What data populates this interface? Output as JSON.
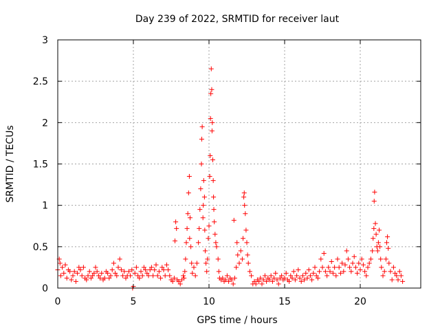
{
  "chart_data": {
    "type": "scatter",
    "title": "Day 239 of 2022, SRMTID for receiver laut",
    "xlabel": "GPS time / hours",
    "ylabel": "SRMTID / TECUs",
    "xlim": [
      0,
      24
    ],
    "ylim": [
      0,
      3
    ],
    "xticks": [
      0,
      5,
      10,
      15,
      20
    ],
    "xtick_labels": [
      "0",
      "5",
      "10",
      "15",
      "20"
    ],
    "yticks": [
      0,
      0.5,
      1,
      1.5,
      2,
      2.5,
      3
    ],
    "ytick_labels": [
      "0",
      "0.5",
      "1",
      "1.5",
      "2",
      "2.5",
      "3"
    ],
    "grid": true,
    "marker": "+",
    "color": "#ff0000",
    "series": [
      {
        "name": "SRMTID",
        "points": [
          [
            0.0,
            0.22
          ],
          [
            0.1,
            0.35
          ],
          [
            0.15,
            0.3
          ],
          [
            0.2,
            0.15
          ],
          [
            0.3,
            0.25
          ],
          [
            0.4,
            0.18
          ],
          [
            0.5,
            0.28
          ],
          [
            0.6,
            0.12
          ],
          [
            0.7,
            0.22
          ],
          [
            0.8,
            0.2
          ],
          [
            0.9,
            0.1
          ],
          [
            1.0,
            0.15
          ],
          [
            1.1,
            0.2
          ],
          [
            1.2,
            0.08
          ],
          [
            1.3,
            0.18
          ],
          [
            1.4,
            0.25
          ],
          [
            1.5,
            0.22
          ],
          [
            1.6,
            0.15
          ],
          [
            1.7,
            0.25
          ],
          [
            1.8,
            0.12
          ],
          [
            1.9,
            0.1
          ],
          [
            2.0,
            0.15
          ],
          [
            2.1,
            0.2
          ],
          [
            2.2,
            0.12
          ],
          [
            2.3,
            0.15
          ],
          [
            2.4,
            0.18
          ],
          [
            2.5,
            0.25
          ],
          [
            2.6,
            0.2
          ],
          [
            2.7,
            0.15
          ],
          [
            2.8,
            0.12
          ],
          [
            2.9,
            0.18
          ],
          [
            3.0,
            0.1
          ],
          [
            3.1,
            0.12
          ],
          [
            3.2,
            0.2
          ],
          [
            3.3,
            0.18
          ],
          [
            3.4,
            0.12
          ],
          [
            3.5,
            0.15
          ],
          [
            3.6,
            0.22
          ],
          [
            3.7,
            0.3
          ],
          [
            3.8,
            0.18
          ],
          [
            3.9,
            0.15
          ],
          [
            4.0,
            0.25
          ],
          [
            4.1,
            0.35
          ],
          [
            4.2,
            0.22
          ],
          [
            4.3,
            0.15
          ],
          [
            4.4,
            0.2
          ],
          [
            4.5,
            0.12
          ],
          [
            4.6,
            0.15
          ],
          [
            4.7,
            0.2
          ],
          [
            4.8,
            0.15
          ],
          [
            4.9,
            0.22
          ],
          [
            4.95,
            0.0
          ],
          [
            5.0,
            0.02
          ],
          [
            5.1,
            0.18
          ],
          [
            5.2,
            0.25
          ],
          [
            5.3,
            0.15
          ],
          [
            5.4,
            0.12
          ],
          [
            5.5,
            0.2
          ],
          [
            5.6,
            0.15
          ],
          [
            5.7,
            0.25
          ],
          [
            5.8,
            0.22
          ],
          [
            5.9,
            0.18
          ],
          [
            6.0,
            0.15
          ],
          [
            6.1,
            0.22
          ],
          [
            6.2,
            0.25
          ],
          [
            6.3,
            0.15
          ],
          [
            6.4,
            0.22
          ],
          [
            6.5,
            0.28
          ],
          [
            6.6,
            0.15
          ],
          [
            6.7,
            0.2
          ],
          [
            6.8,
            0.12
          ],
          [
            6.9,
            0.25
          ],
          [
            7.0,
            0.22
          ],
          [
            7.1,
            0.15
          ],
          [
            7.2,
            0.28
          ],
          [
            7.3,
            0.22
          ],
          [
            7.4,
            0.15
          ],
          [
            7.5,
            0.1
          ],
          [
            7.6,
            0.08
          ],
          [
            7.7,
            0.12
          ],
          [
            7.75,
            0.57
          ],
          [
            7.8,
            0.8
          ],
          [
            7.85,
            0.72
          ],
          [
            7.9,
            0.1
          ],
          [
            8.0,
            0.08
          ],
          [
            8.1,
            0.05
          ],
          [
            8.2,
            0.1
          ],
          [
            8.3,
            0.15
          ],
          [
            8.35,
            0.12
          ],
          [
            8.4,
            0.2
          ],
          [
            8.45,
            0.35
          ],
          [
            8.5,
            0.55
          ],
          [
            8.55,
            0.72
          ],
          [
            8.6,
            0.9
          ],
          [
            8.65,
            1.15
          ],
          [
            8.7,
            1.35
          ],
          [
            8.72,
            0.6
          ],
          [
            8.75,
            0.85
          ],
          [
            8.8,
            0.5
          ],
          [
            8.85,
            0.3
          ],
          [
            8.9,
            0.18
          ],
          [
            9.0,
            0.25
          ],
          [
            9.1,
            0.15
          ],
          [
            9.2,
            0.3
          ],
          [
            9.3,
            0.55
          ],
          [
            9.35,
            0.72
          ],
          [
            9.4,
            0.95
          ],
          [
            9.45,
            1.2
          ],
          [
            9.5,
            1.5
          ],
          [
            9.52,
            1.8
          ],
          [
            9.55,
            1.95
          ],
          [
            9.6,
            0.85
          ],
          [
            9.62,
            1.0
          ],
          [
            9.65,
            1.3
          ],
          [
            9.7,
            1.1
          ],
          [
            9.72,
            0.7
          ],
          [
            9.75,
            0.45
          ],
          [
            9.8,
            0.3
          ],
          [
            9.85,
            0.2
          ],
          [
            9.9,
            0.35
          ],
          [
            9.95,
            0.6
          ],
          [
            10.0,
            0.75
          ],
          [
            10.05,
            1.35
          ],
          [
            10.08,
            1.6
          ],
          [
            10.1,
            2.05
          ],
          [
            10.12,
            2.35
          ],
          [
            10.15,
            2.65
          ],
          [
            10.18,
            2.4
          ],
          [
            10.2,
            1.9
          ],
          [
            10.22,
            2.0
          ],
          [
            10.25,
            1.55
          ],
          [
            10.28,
            1.3
          ],
          [
            10.3,
            1.1
          ],
          [
            10.32,
            0.95
          ],
          [
            10.35,
            0.8
          ],
          [
            10.4,
            0.65
          ],
          [
            10.45,
            0.55
          ],
          [
            10.5,
            0.5
          ],
          [
            10.6,
            0.35
          ],
          [
            10.65,
            0.2
          ],
          [
            10.7,
            0.12
          ],
          [
            10.8,
            0.1
          ],
          [
            10.9,
            0.12
          ],
          [
            11.0,
            0.08
          ],
          [
            11.1,
            0.1
          ],
          [
            11.2,
            0.15
          ],
          [
            11.3,
            0.08
          ],
          [
            11.4,
            0.12
          ],
          [
            11.5,
            0.1
          ],
          [
            11.6,
            0.05
          ],
          [
            11.65,
            0.82
          ],
          [
            11.7,
            0.12
          ],
          [
            11.8,
            0.25
          ],
          [
            11.85,
            0.55
          ],
          [
            11.9,
            0.4
          ],
          [
            12.0,
            0.3
          ],
          [
            12.1,
            0.45
          ],
          [
            12.2,
            0.35
          ],
          [
            12.25,
            0.6
          ],
          [
            12.3,
            1.1
          ],
          [
            12.33,
            1.15
          ],
          [
            12.35,
            1.0
          ],
          [
            12.4,
            0.9
          ],
          [
            12.45,
            0.7
          ],
          [
            12.5,
            0.55
          ],
          [
            12.55,
            0.4
          ],
          [
            12.6,
            0.3
          ],
          [
            12.7,
            0.2
          ],
          [
            12.8,
            0.15
          ],
          [
            12.9,
            0.05
          ],
          [
            13.0,
            0.08
          ],
          [
            13.1,
            0.05
          ],
          [
            13.2,
            0.1
          ],
          [
            13.3,
            0.08
          ],
          [
            13.4,
            0.12
          ],
          [
            13.5,
            0.05
          ],
          [
            13.6,
            0.1
          ],
          [
            13.7,
            0.15
          ],
          [
            13.8,
            0.08
          ],
          [
            13.9,
            0.12
          ],
          [
            14.0,
            0.1
          ],
          [
            14.1,
            0.15
          ],
          [
            14.2,
            0.08
          ],
          [
            14.3,
            0.12
          ],
          [
            14.4,
            0.18
          ],
          [
            14.5,
            0.1
          ],
          [
            14.6,
            0.05
          ],
          [
            14.7,
            0.12
          ],
          [
            14.8,
            0.15
          ],
          [
            14.9,
            0.1
          ],
          [
            15.0,
            0.12
          ],
          [
            15.1,
            0.18
          ],
          [
            15.2,
            0.1
          ],
          [
            15.3,
            0.08
          ],
          [
            15.4,
            0.15
          ],
          [
            15.5,
            0.12
          ],
          [
            15.6,
            0.2
          ],
          [
            15.7,
            0.1
          ],
          [
            15.8,
            0.15
          ],
          [
            15.9,
            0.22
          ],
          [
            16.0,
            0.12
          ],
          [
            16.1,
            0.08
          ],
          [
            16.2,
            0.15
          ],
          [
            16.3,
            0.1
          ],
          [
            16.4,
            0.18
          ],
          [
            16.5,
            0.12
          ],
          [
            16.6,
            0.22
          ],
          [
            16.7,
            0.15
          ],
          [
            16.8,
            0.1
          ],
          [
            16.9,
            0.18
          ],
          [
            17.0,
            0.25
          ],
          [
            17.1,
            0.15
          ],
          [
            17.2,
            0.12
          ],
          [
            17.3,
            0.2
          ],
          [
            17.4,
            0.35
          ],
          [
            17.5,
            0.25
          ],
          [
            17.6,
            0.42
          ],
          [
            17.7,
            0.2
          ],
          [
            17.8,
            0.15
          ],
          [
            17.9,
            0.25
          ],
          [
            18.0,
            0.2
          ],
          [
            18.1,
            0.32
          ],
          [
            18.2,
            0.18
          ],
          [
            18.3,
            0.25
          ],
          [
            18.4,
            0.15
          ],
          [
            18.5,
            0.35
          ],
          [
            18.6,
            0.25
          ],
          [
            18.7,
            0.18
          ],
          [
            18.8,
            0.3
          ],
          [
            18.9,
            0.2
          ],
          [
            19.0,
            0.28
          ],
          [
            19.1,
            0.45
          ],
          [
            19.2,
            0.35
          ],
          [
            19.3,
            0.25
          ],
          [
            19.4,
            0.2
          ],
          [
            19.5,
            0.3
          ],
          [
            19.6,
            0.38
          ],
          [
            19.7,
            0.25
          ],
          [
            19.8,
            0.18
          ],
          [
            19.9,
            0.3
          ],
          [
            20.0,
            0.22
          ],
          [
            20.1,
            0.35
          ],
          [
            20.2,
            0.28
          ],
          [
            20.3,
            0.2
          ],
          [
            20.4,
            0.15
          ],
          [
            20.5,
            0.25
          ],
          [
            20.6,
            0.3
          ],
          [
            20.7,
            0.35
          ],
          [
            20.8,
            0.45
          ],
          [
            20.85,
            0.6
          ],
          [
            20.9,
            0.72
          ],
          [
            20.92,
            1.05
          ],
          [
            20.95,
            1.16
          ],
          [
            21.0,
            0.78
          ],
          [
            21.05,
            0.65
          ],
          [
            21.1,
            0.5
          ],
          [
            21.15,
            0.45
          ],
          [
            21.2,
            0.55
          ],
          [
            21.25,
            0.7
          ],
          [
            21.3,
            0.5
          ],
          [
            21.35,
            0.35
          ],
          [
            21.4,
            0.25
          ],
          [
            21.5,
            0.15
          ],
          [
            21.6,
            0.2
          ],
          [
            21.7,
            0.35
          ],
          [
            21.75,
            0.55
          ],
          [
            21.8,
            0.62
          ],
          [
            21.85,
            0.48
          ],
          [
            21.9,
            0.3
          ],
          [
            22.0,
            0.2
          ],
          [
            22.1,
            0.1
          ],
          [
            22.2,
            0.25
          ],
          [
            22.3,
            0.18
          ],
          [
            22.4,
            0.15
          ],
          [
            22.5,
            0.1
          ],
          [
            22.6,
            0.2
          ],
          [
            22.7,
            0.15
          ],
          [
            22.8,
            0.08
          ]
        ]
      }
    ]
  }
}
